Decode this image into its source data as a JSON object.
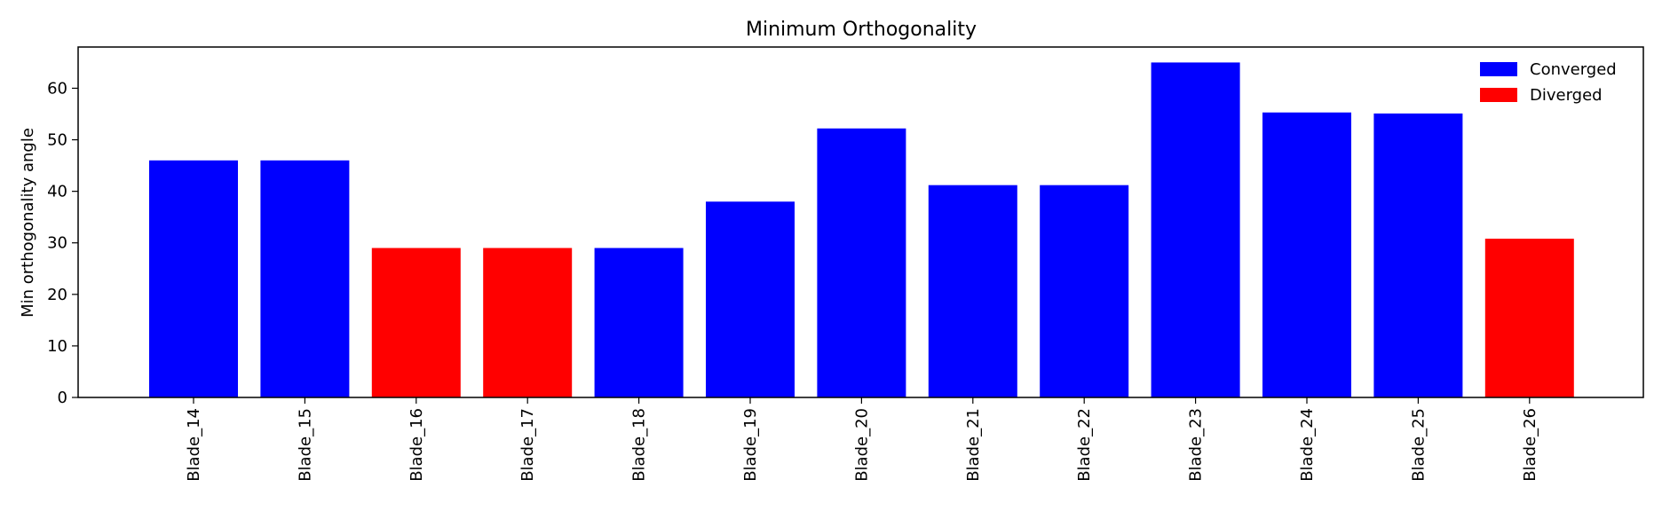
{
  "chart_data": {
    "type": "bar",
    "title": "Minimum Orthogonality",
    "xlabel": "",
    "ylabel": "Min orthogonality angle",
    "ylim": [
      0,
      68
    ],
    "yticks": [
      0,
      10,
      20,
      30,
      40,
      50,
      60
    ],
    "categories": [
      "Blade_14",
      "Blade_15",
      "Blade_16",
      "Blade_17",
      "Blade_18",
      "Blade_19",
      "Blade_20",
      "Blade_21",
      "Blade_22",
      "Blade_23",
      "Blade_24",
      "Blade_25",
      "Blade_26"
    ],
    "values": [
      46,
      46,
      29,
      29,
      29,
      38,
      52.2,
      41.2,
      41.2,
      65,
      55.3,
      55.1,
      30.8
    ],
    "status": [
      "Converged",
      "Converged",
      "Diverged",
      "Diverged",
      "Converged",
      "Converged",
      "Converged",
      "Converged",
      "Converged",
      "Converged",
      "Converged",
      "Converged",
      "Diverged"
    ],
    "legend": {
      "position": "top-right",
      "entries": [
        {
          "label": "Converged",
          "color": "#0000ff"
        },
        {
          "label": "Diverged",
          "color": "#ff0000"
        }
      ]
    },
    "grid": false
  }
}
